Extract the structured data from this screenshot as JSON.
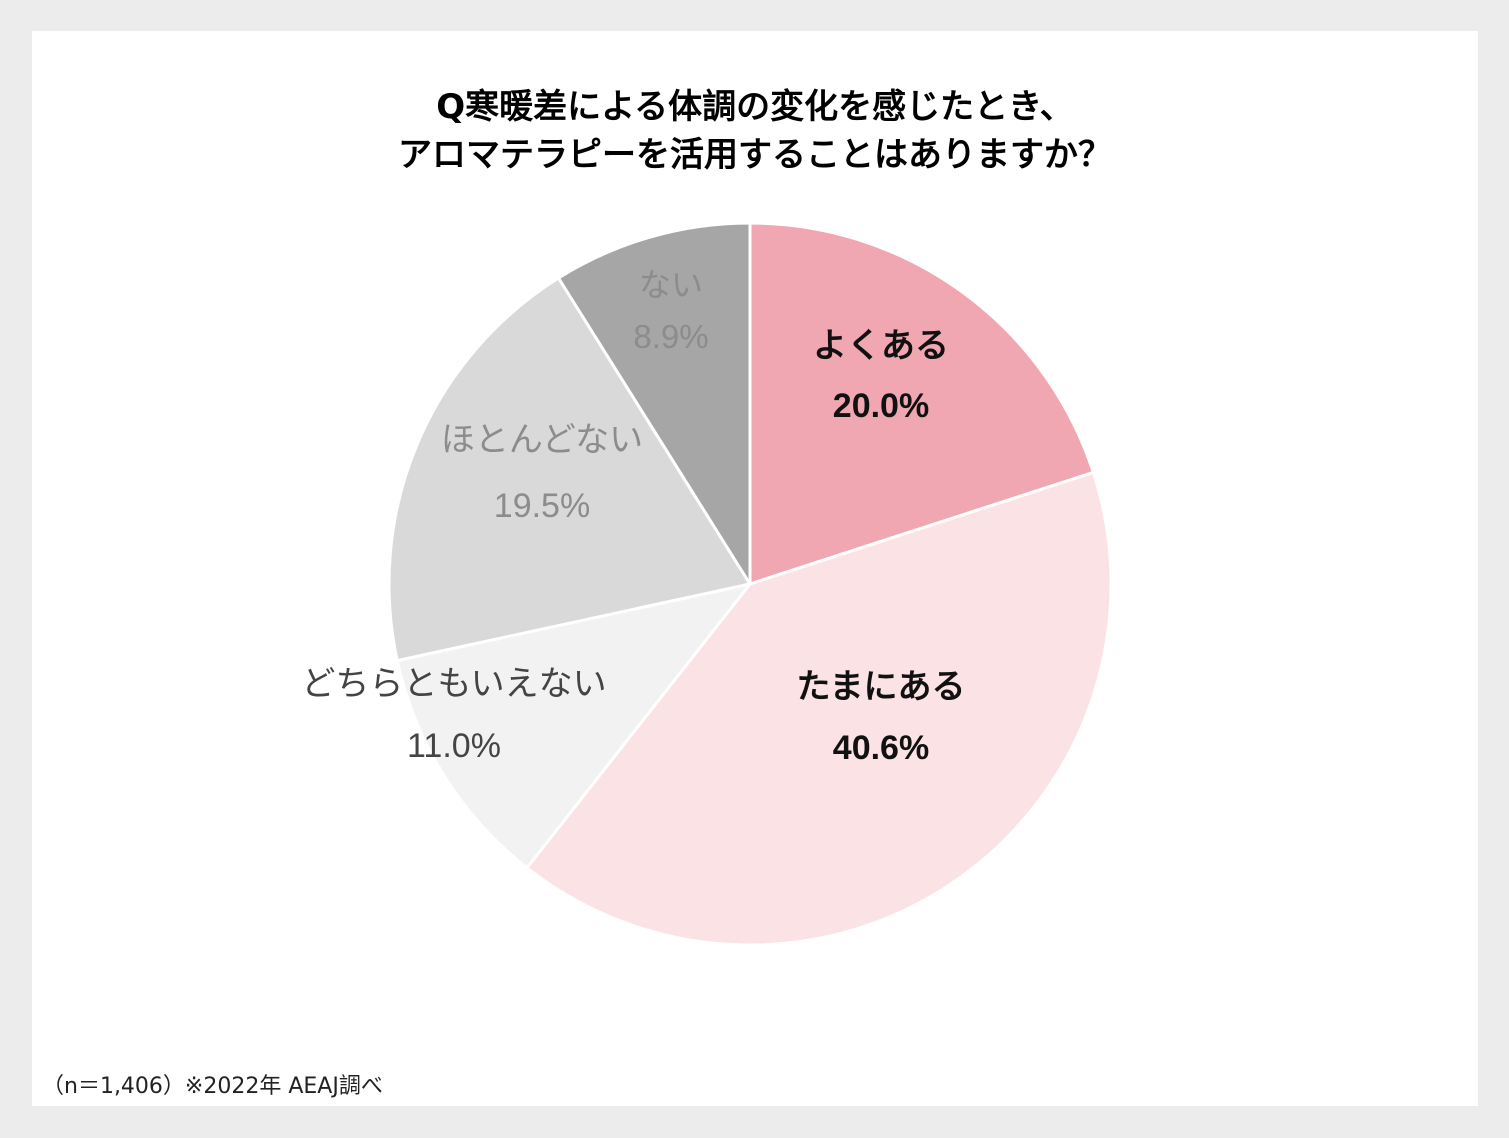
{
  "chart_data": {
    "type": "pie",
    "title": [
      "Q寒暖差による体調の変化を感じたとき、",
      "アロマテラピーを活用することはありますか？"
    ],
    "slices": [
      {
        "label": "よくある",
        "value": 20.0,
        "value_label": "20.0%",
        "color": "#f0a7b2",
        "text_color": "#111111",
        "bold": true
      },
      {
        "label": "たまにある",
        "value": 40.6,
        "value_label": "40.6%",
        "color": "#fae2e5",
        "text_color": "#111111",
        "bold": true
      },
      {
        "label": "どちらともいえない",
        "value": 11.0,
        "value_label": "11.0%",
        "color": "#f2f2f2",
        "text_color": "#444444",
        "bold": false
      },
      {
        "label": "ほとんどない",
        "value": 19.5,
        "value_label": "19.5%",
        "color": "#d9d9d9",
        "text_color": "#8c8c8c",
        "bold": false
      },
      {
        "label": "ない",
        "value": 8.9,
        "value_label": "8.9%",
        "color": "#a6a6a6",
        "text_color": "#8c8c8c",
        "bold": false
      }
    ],
    "start": "12 o'clock",
    "direction": "clockwise"
  },
  "footnote": "（n＝1,406）※2022年 AEAJ調べ"
}
